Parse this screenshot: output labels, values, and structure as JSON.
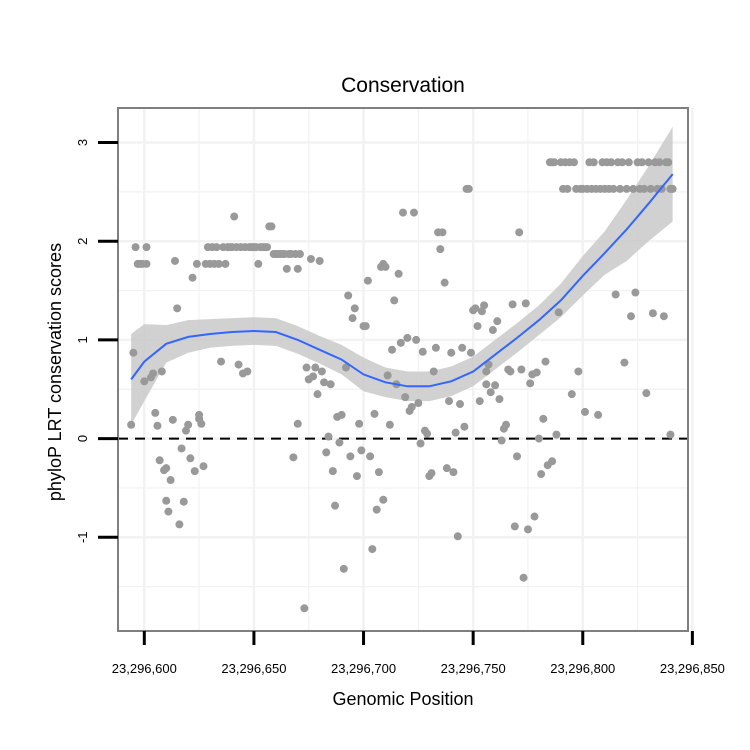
{
  "chart_data": {
    "type": "scatter",
    "title": "Conservation",
    "xlabel": "Genomic Position",
    "ylabel": "phyloP LRT conservation scores",
    "xlim": [
      23296588,
      23296848
    ],
    "ylim": [
      -1.95,
      3.35
    ],
    "xticks": [
      23296600,
      23296650,
      23296700,
      23296750,
      23296800,
      23296850
    ],
    "xtick_labels": [
      "23,296,600",
      "23,296,650",
      "23,296,700",
      "23,296,750",
      "23,296,800",
      "23,296,850"
    ],
    "yticks": [
      -1,
      0,
      1,
      2,
      3
    ],
    "ytick_labels": [
      "-1",
      "0",
      "1",
      "2",
      "3"
    ],
    "grid": true,
    "reference_line": {
      "y": 0,
      "style": "dashed"
    },
    "colors": {
      "points": "#999999",
      "smooth": "#3366ff",
      "ribbon": "#c9c9c9",
      "panel_border": "#7f7f7f",
      "grid": "#f2f2f2"
    },
    "points": [
      [
        23296594,
        0.14
      ],
      [
        23296595,
        0.87
      ],
      [
        23296596,
        1.94
      ],
      [
        23296597,
        1.77
      ],
      [
        23296598,
        1.77
      ],
      [
        23296599,
        1.77
      ],
      [
        23296600,
        0.58
      ],
      [
        23296601,
        1.94
      ],
      [
        23296601,
        1.77
      ],
      [
        23296603,
        0.62
      ],
      [
        23296604,
        0.66
      ],
      [
        23296605,
        0.26
      ],
      [
        23296606,
        0.13
      ],
      [
        23296607,
        -0.22
      ],
      [
        23296608,
        0.68
      ],
      [
        23296609,
        -0.32
      ],
      [
        23296610,
        -0.63
      ],
      [
        23296610,
        -0.3
      ],
      [
        23296611,
        -0.74
      ],
      [
        23296612,
        -0.42
      ],
      [
        23296613,
        0.19
      ],
      [
        23296614,
        1.8
      ],
      [
        23296615,
        1.32
      ],
      [
        23296616,
        -0.87
      ],
      [
        23296617,
        -0.1
      ],
      [
        23296618,
        -0.64
      ],
      [
        23296619,
        0.08
      ],
      [
        23296620,
        0.14
      ],
      [
        23296621,
        -0.2
      ],
      [
        23296622,
        1.63
      ],
      [
        23296623,
        -0.33
      ],
      [
        23296624,
        1.77
      ],
      [
        23296625,
        0.2
      ],
      [
        23296625,
        0.24
      ],
      [
        23296626,
        0.15
      ],
      [
        23296627,
        -0.28
      ],
      [
        23296628,
        1.77
      ],
      [
        23296629,
        1.94
      ],
      [
        23296630,
        1.77
      ],
      [
        23296631,
        1.94
      ],
      [
        23296632,
        1.77
      ],
      [
        23296633,
        1.94
      ],
      [
        23296634,
        1.77
      ],
      [
        23296635,
        0.78
      ],
      [
        23296636,
        1.94
      ],
      [
        23296637,
        1.77
      ],
      [
        23296638,
        1.94
      ],
      [
        23296639,
        1.94
      ],
      [
        23296640,
        1.94
      ],
      [
        23296641,
        2.25
      ],
      [
        23296642,
        1.94
      ],
      [
        23296643,
        0.75
      ],
      [
        23296644,
        1.94
      ],
      [
        23296645,
        0.66
      ],
      [
        23296646,
        1.94
      ],
      [
        23296647,
        0.68
      ],
      [
        23296648,
        1.94
      ],
      [
        23296649,
        1.94
      ],
      [
        23296650,
        1.94
      ],
      [
        23296651,
        1.94
      ],
      [
        23296652,
        1.77
      ],
      [
        23296653,
        1.94
      ],
      [
        23296654,
        1.94
      ],
      [
        23296655,
        1.94
      ],
      [
        23296656,
        1.94
      ],
      [
        23296657,
        2.15
      ],
      [
        23296658,
        2.15
      ],
      [
        23296659,
        1.87
      ],
      [
        23296660,
        1.87
      ],
      [
        23296661,
        1.87
      ],
      [
        23296662,
        1.87
      ],
      [
        23296663,
        1.87
      ],
      [
        23296664,
        1.87
      ],
      [
        23296665,
        1.72
      ],
      [
        23296666,
        1.87
      ],
      [
        23296667,
        1.87
      ],
      [
        23296668,
        -0.19
      ],
      [
        23296669,
        1.87
      ],
      [
        23296670,
        1.72
      ],
      [
        23296670,
        0.15
      ],
      [
        23296671,
        1.87
      ],
      [
        23296673,
        -1.72
      ],
      [
        23296674,
        0.72
      ],
      [
        23296675,
        0.6
      ],
      [
        23296676,
        1.82
      ],
      [
        23296677,
        0.63
      ],
      [
        23296678,
        0.72
      ],
      [
        23296679,
        0.45
      ],
      [
        23296680,
        1.8
      ],
      [
        23296681,
        0.68
      ],
      [
        23296682,
        0.57
      ],
      [
        23296683,
        -0.14
      ],
      [
        23296684,
        0.02
      ],
      [
        23296685,
        0.55
      ],
      [
        23296686,
        -0.33
      ],
      [
        23296687,
        -0.68
      ],
      [
        23296688,
        0.22
      ],
      [
        23296689,
        -0.04
      ],
      [
        23296690,
        0.24
      ],
      [
        23296691,
        -1.32
      ],
      [
        23296692,
        0.72
      ],
      [
        23296693,
        1.45
      ],
      [
        23296694,
        -0.18
      ],
      [
        23296695,
        1.22
      ],
      [
        23296696,
        1.32
      ],
      [
        23296697,
        -0.38
      ],
      [
        23296698,
        0.15
      ],
      [
        23296699,
        -0.12
      ],
      [
        23296700,
        1.14
      ],
      [
        23296701,
        1.14
      ],
      [
        23296702,
        1.6
      ],
      [
        23296703,
        -0.18
      ],
      [
        23296704,
        -1.12
      ],
      [
        23296705,
        0.25
      ],
      [
        23296706,
        -0.72
      ],
      [
        23296707,
        -0.34
      ],
      [
        23296708,
        1.74
      ],
      [
        23296709,
        -0.62
      ],
      [
        23296709,
        1.77
      ],
      [
        23296710,
        1.74
      ],
      [
        23296711,
        0.64
      ],
      [
        23296712,
        0.14
      ],
      [
        23296713,
        0.9
      ],
      [
        23296714,
        1.4
      ],
      [
        23296715,
        0.55
      ],
      [
        23296716,
        1.67
      ],
      [
        23296717,
        0.97
      ],
      [
        23296718,
        2.29
      ],
      [
        23296719,
        0.42
      ],
      [
        23296720,
        1.02
      ],
      [
        23296721,
        0.28
      ],
      [
        23296722,
        0.32
      ],
      [
        23296723,
        2.29
      ],
      [
        23296724,
        1.0
      ],
      [
        23296725,
        0.36
      ],
      [
        23296726,
        -0.05
      ],
      [
        23296727,
        0.88
      ],
      [
        23296728,
        0.08
      ],
      [
        23296729,
        0.05
      ],
      [
        23296730,
        -0.38
      ],
      [
        23296731,
        -0.35
      ],
      [
        23296732,
        0.68
      ],
      [
        23296733,
        0.92
      ],
      [
        23296734,
        2.09
      ],
      [
        23296735,
        1.92
      ],
      [
        23296736,
        2.09
      ],
      [
        23296737,
        1.58
      ],
      [
        23296738,
        -0.3
      ],
      [
        23296739,
        0.38
      ],
      [
        23296740,
        0.87
      ],
      [
        23296741,
        -0.34
      ],
      [
        23296742,
        0.06
      ],
      [
        23296743,
        -0.99
      ],
      [
        23296744,
        0.35
      ],
      [
        23296745,
        0.92
      ],
      [
        23296746,
        0.12
      ],
      [
        23296747,
        2.53
      ],
      [
        23296748,
        2.53
      ],
      [
        23296749,
        0.87
      ],
      [
        23296750,
        1.3
      ],
      [
        23296751,
        1.32
      ],
      [
        23296752,
        1.14
      ],
      [
        23296753,
        0.38
      ],
      [
        23296754,
        1.29
      ],
      [
        23296755,
        1.35
      ],
      [
        23296756,
        0.55
      ],
      [
        23296756,
        0.68
      ],
      [
        23296757,
        0.75
      ],
      [
        23296758,
        0.47
      ],
      [
        23296759,
        1.1
      ],
      [
        23296760,
        0.54
      ],
      [
        23296761,
        1.19
      ],
      [
        23296762,
        0.4
      ],
      [
        23296763,
        -0.02
      ],
      [
        23296764,
        0.1
      ],
      [
        23296765,
        0.14
      ],
      [
        23296766,
        0.7
      ],
      [
        23296767,
        0.68
      ],
      [
        23296768,
        1.36
      ],
      [
        23296769,
        -0.89
      ],
      [
        23296770,
        -0.18
      ],
      [
        23296771,
        2.09
      ],
      [
        23296772,
        0.7
      ],
      [
        23296773,
        -1.41
      ],
      [
        23296774,
        1.37
      ],
      [
        23296775,
        -0.92
      ],
      [
        23296776,
        0.56
      ],
      [
        23296777,
        0.65
      ],
      [
        23296778,
        -0.79
      ],
      [
        23296779,
        0.67
      ],
      [
        23296780,
        0.0
      ],
      [
        23296781,
        -0.36
      ],
      [
        23296782,
        0.2
      ],
      [
        23296783,
        0.78
      ],
      [
        23296784,
        -0.27
      ],
      [
        23296785,
        2.8
      ],
      [
        23296786,
        -0.23
      ],
      [
        23296786,
        2.8
      ],
      [
        23296787,
        2.8
      ],
      [
        23296788,
        0.04
      ],
      [
        23296789,
        1.28
      ],
      [
        23296790,
        2.8
      ],
      [
        23296791,
        2.53
      ],
      [
        23296792,
        2.8
      ],
      [
        23296793,
        2.53
      ],
      [
        23296794,
        2.8
      ],
      [
        23296795,
        0.45
      ],
      [
        23296796,
        2.8
      ],
      [
        23296797,
        2.53
      ],
      [
        23296798,
        0.68
      ],
      [
        23296799,
        2.53
      ],
      [
        23296800,
        2.53
      ],
      [
        23296801,
        0.27
      ],
      [
        23296802,
        2.53
      ],
      [
        23296803,
        2.8
      ],
      [
        23296804,
        2.53
      ],
      [
        23296805,
        2.8
      ],
      [
        23296806,
        2.53
      ],
      [
        23296807,
        0.24
      ],
      [
        23296808,
        2.53
      ],
      [
        23296809,
        2.8
      ],
      [
        23296810,
        2.53
      ],
      [
        23296811,
        2.8
      ],
      [
        23296812,
        2.53
      ],
      [
        23296813,
        2.8
      ],
      [
        23296814,
        2.53
      ],
      [
        23296815,
        1.46
      ],
      [
        23296816,
        2.8
      ],
      [
        23296817,
        2.53
      ],
      [
        23296818,
        2.8
      ],
      [
        23296819,
        0.77
      ],
      [
        23296820,
        2.53
      ],
      [
        23296821,
        2.8
      ],
      [
        23296822,
        1.24
      ],
      [
        23296823,
        2.53
      ],
      [
        23296824,
        1.48
      ],
      [
        23296825,
        2.8
      ],
      [
        23296826,
        2.53
      ],
      [
        23296827,
        2.8
      ],
      [
        23296828,
        2.53
      ],
      [
        23296829,
        0.46
      ],
      [
        23296830,
        2.8
      ],
      [
        23296831,
        2.53
      ],
      [
        23296832,
        1.27
      ],
      [
        23296833,
        2.8
      ],
      [
        23296834,
        2.53
      ],
      [
        23296835,
        2.8
      ],
      [
        23296836,
        2.53
      ],
      [
        23296837,
        1.24
      ],
      [
        23296838,
        2.8
      ],
      [
        23296839,
        2.8
      ],
      [
        23296840,
        2.53
      ],
      [
        23296840,
        0.04
      ],
      [
        23296841,
        2.53
      ]
    ],
    "smooth": [
      [
        23296594,
        0.6,
        0.14,
        1.06
      ],
      [
        23296600,
        0.78,
        0.38,
        1.16
      ],
      [
        23296610,
        0.96,
        0.77,
        1.15
      ],
      [
        23296620,
        1.03,
        0.87,
        1.2
      ],
      [
        23296630,
        1.06,
        0.92,
        1.21
      ],
      [
        23296640,
        1.08,
        0.94,
        1.22
      ],
      [
        23296650,
        1.09,
        0.95,
        1.23
      ],
      [
        23296660,
        1.08,
        0.94,
        1.22
      ],
      [
        23296670,
        1.0,
        0.86,
        1.14
      ],
      [
        23296680,
        0.9,
        0.76,
        1.04
      ],
      [
        23296690,
        0.8,
        0.65,
        0.95
      ],
      [
        23296700,
        0.65,
        0.48,
        0.82
      ],
      [
        23296710,
        0.57,
        0.42,
        0.72
      ],
      [
        23296720,
        0.53,
        0.38,
        0.68
      ],
      [
        23296730,
        0.53,
        0.38,
        0.68
      ],
      [
        23296740,
        0.58,
        0.43,
        0.73
      ],
      [
        23296750,
        0.68,
        0.53,
        0.83
      ],
      [
        23296760,
        0.85,
        0.7,
        1.0
      ],
      [
        23296770,
        1.02,
        0.87,
        1.17
      ],
      [
        23296780,
        1.2,
        1.05,
        1.35
      ],
      [
        23296790,
        1.4,
        1.23,
        1.57
      ],
      [
        23296800,
        1.65,
        1.45,
        1.85
      ],
      [
        23296810,
        1.88,
        1.66,
        2.1
      ],
      [
        23296820,
        2.12,
        1.8,
        2.42
      ],
      [
        23296830,
        2.38,
        2.0,
        2.76
      ],
      [
        23296841,
        2.68,
        2.2,
        3.16
      ]
    ]
  }
}
